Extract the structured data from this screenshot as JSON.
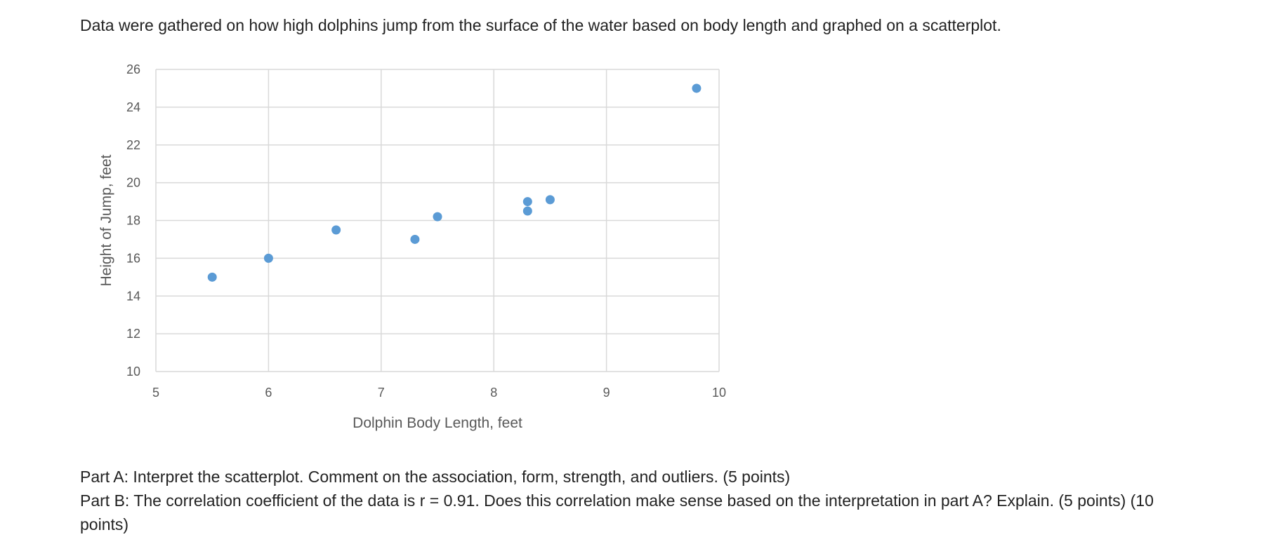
{
  "intro": "Data were gathered on how high dolphins jump from the surface of the water based on body length and graphed on a scatterplot.",
  "questions": {
    "part_a": "Part A: Interpret the scatterplot. Comment on the association, form, strength, and outliers. (5 points)",
    "part_b": "Part B: The correlation coefficient of the data is r = 0.91. Does this correlation make sense based on the interpretation in part A? Explain. (5 points) (10 points)"
  },
  "chart_data": {
    "type": "scatter",
    "xlabel": "Dolphin Body Length, feet",
    "ylabel": "Height of Jump, feet",
    "xlim": [
      5,
      10
    ],
    "ylim": [
      10,
      26
    ],
    "x_ticks": [
      5,
      6,
      7,
      8,
      9,
      10
    ],
    "y_ticks": [
      10,
      12,
      14,
      16,
      18,
      20,
      22,
      24,
      26
    ],
    "grid": true,
    "legend": "none",
    "marker_color": "#5B9BD5",
    "points": [
      {
        "x": 5.5,
        "y": 15.0
      },
      {
        "x": 6.0,
        "y": 16.0
      },
      {
        "x": 6.6,
        "y": 17.5
      },
      {
        "x": 7.3,
        "y": 17.0
      },
      {
        "x": 7.5,
        "y": 18.2
      },
      {
        "x": 8.3,
        "y": 19.0
      },
      {
        "x": 8.3,
        "y": 18.5
      },
      {
        "x": 8.5,
        "y": 19.1
      },
      {
        "x": 9.8,
        "y": 25.0
      }
    ]
  }
}
